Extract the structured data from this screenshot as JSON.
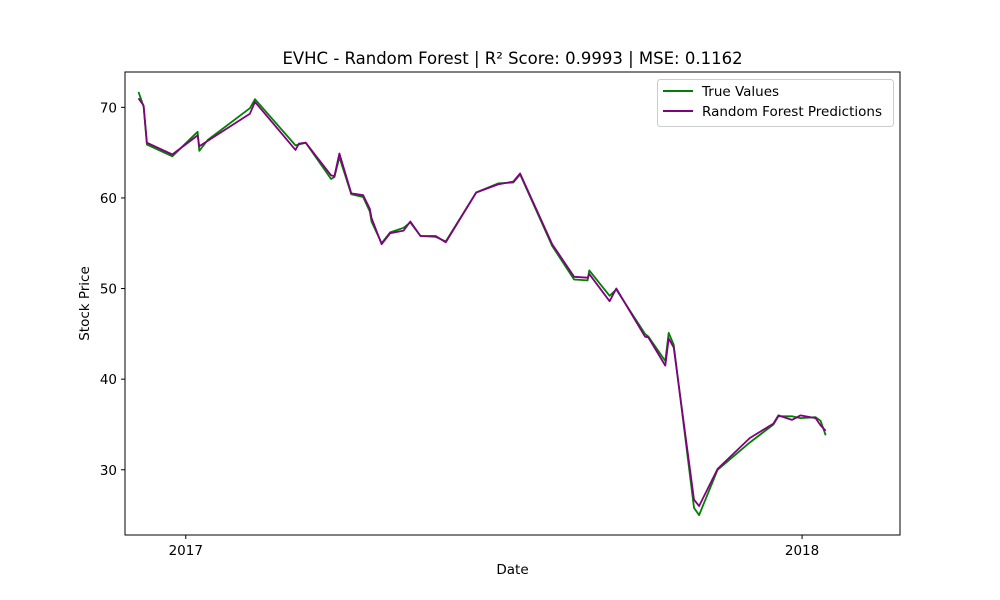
{
  "chart_data": {
    "type": "line",
    "title": "EVHC - Random Forest | R² Score: 0.9993 | MSE: 0.1162",
    "xlabel": "Date",
    "ylabel": "Stock Price",
    "xlim": [
      "2016-11-26",
      "2018-02-28"
    ],
    "ylim": [
      22.8,
      73.9
    ],
    "x_ticks": [
      {
        "date": "2017-01-01",
        "label": "2017"
      },
      {
        "date": "2018-01-01",
        "label": "2018"
      }
    ],
    "y_ticks": [
      30,
      40,
      50,
      60,
      70
    ],
    "legend_position": "top-right",
    "grid": false,
    "series": [
      {
        "name": "True Values",
        "color": "#008000",
        "points": [
          [
            "2016-12-04",
            71.7
          ],
          [
            "2016-12-07",
            70.1
          ],
          [
            "2016-12-09",
            65.9
          ],
          [
            "2016-12-24",
            64.6
          ],
          [
            "2017-01-08",
            67.3
          ],
          [
            "2017-01-09",
            65.2
          ],
          [
            "2017-01-14",
            66.4
          ],
          [
            "2017-02-08",
            69.9
          ],
          [
            "2017-02-11",
            70.9
          ],
          [
            "2017-03-07",
            65.8
          ],
          [
            "2017-03-09",
            65.9
          ],
          [
            "2017-03-13",
            66.1
          ],
          [
            "2017-03-28",
            62.1
          ],
          [
            "2017-03-30",
            62.3
          ],
          [
            "2017-04-02",
            64.5
          ],
          [
            "2017-04-09",
            60.4
          ],
          [
            "2017-04-16",
            60.1
          ],
          [
            "2017-04-20",
            58.5
          ],
          [
            "2017-04-21",
            57.4
          ],
          [
            "2017-04-27",
            55.0
          ],
          [
            "2017-05-02",
            56.2
          ],
          [
            "2017-05-10",
            56.7
          ],
          [
            "2017-05-14",
            57.3
          ],
          [
            "2017-05-20",
            55.8
          ],
          [
            "2017-05-29",
            55.7
          ],
          [
            "2017-06-04",
            55.2
          ],
          [
            "2017-06-22",
            60.6
          ],
          [
            "2017-07-05",
            61.6
          ],
          [
            "2017-07-14",
            61.7
          ],
          [
            "2017-07-18",
            62.6
          ],
          [
            "2017-08-06",
            54.7
          ],
          [
            "2017-08-19",
            51.0
          ],
          [
            "2017-08-27",
            50.9
          ],
          [
            "2017-08-28",
            52.0
          ],
          [
            "2017-09-09",
            49.2
          ],
          [
            "2017-09-13",
            49.9
          ],
          [
            "2017-09-30",
            45.0
          ],
          [
            "2017-10-02",
            44.7
          ],
          [
            "2017-10-12",
            42.0
          ],
          [
            "2017-10-14",
            45.1
          ],
          [
            "2017-10-17",
            43.8
          ],
          [
            "2017-10-29",
            25.8
          ],
          [
            "2017-11-01",
            25.0
          ],
          [
            "2017-11-12",
            30.0
          ],
          [
            "2017-12-01",
            33.0
          ],
          [
            "2017-12-15",
            35.0
          ],
          [
            "2017-12-18",
            35.9
          ],
          [
            "2017-12-26",
            35.9
          ],
          [
            "2017-12-31",
            35.7
          ],
          [
            "2018-01-09",
            35.8
          ],
          [
            "2018-01-12",
            35.4
          ],
          [
            "2018-01-15",
            33.8
          ]
        ]
      },
      {
        "name": "Random Forest Predictions",
        "color": "#800080",
        "points": [
          [
            "2016-12-04",
            71.0
          ],
          [
            "2016-12-07",
            70.2
          ],
          [
            "2016-12-09",
            66.1
          ],
          [
            "2016-12-24",
            64.8
          ],
          [
            "2017-01-08",
            66.9
          ],
          [
            "2017-01-09",
            65.7
          ],
          [
            "2017-01-14",
            66.3
          ],
          [
            "2017-02-08",
            69.3
          ],
          [
            "2017-02-11",
            70.6
          ],
          [
            "2017-03-07",
            65.3
          ],
          [
            "2017-03-09",
            66.0
          ],
          [
            "2017-03-13",
            66.1
          ],
          [
            "2017-03-28",
            62.5
          ],
          [
            "2017-03-30",
            62.4
          ],
          [
            "2017-04-02",
            64.9
          ],
          [
            "2017-04-09",
            60.5
          ],
          [
            "2017-04-16",
            60.3
          ],
          [
            "2017-04-20",
            58.8
          ],
          [
            "2017-04-21",
            57.8
          ],
          [
            "2017-04-27",
            54.9
          ],
          [
            "2017-05-02",
            56.1
          ],
          [
            "2017-05-10",
            56.4
          ],
          [
            "2017-05-14",
            57.4
          ],
          [
            "2017-05-20",
            55.8
          ],
          [
            "2017-05-29",
            55.8
          ],
          [
            "2017-06-04",
            55.1
          ],
          [
            "2017-06-22",
            60.6
          ],
          [
            "2017-07-05",
            61.5
          ],
          [
            "2017-07-14",
            61.8
          ],
          [
            "2017-07-18",
            62.7
          ],
          [
            "2017-08-06",
            54.9
          ],
          [
            "2017-08-19",
            51.3
          ],
          [
            "2017-08-27",
            51.2
          ],
          [
            "2017-08-28",
            51.6
          ],
          [
            "2017-09-09",
            48.6
          ],
          [
            "2017-09-13",
            50.0
          ],
          [
            "2017-09-30",
            44.7
          ],
          [
            "2017-10-02",
            44.6
          ],
          [
            "2017-10-12",
            41.5
          ],
          [
            "2017-10-14",
            44.5
          ],
          [
            "2017-10-17",
            43.5
          ],
          [
            "2017-10-29",
            26.7
          ],
          [
            "2017-11-01",
            26.0
          ],
          [
            "2017-11-12",
            30.1
          ],
          [
            "2017-12-01",
            33.5
          ],
          [
            "2017-12-15",
            35.1
          ],
          [
            "2017-12-18",
            36.0
          ],
          [
            "2017-12-26",
            35.5
          ],
          [
            "2017-12-31",
            36.0
          ],
          [
            "2018-01-09",
            35.7
          ],
          [
            "2018-01-12",
            34.9
          ],
          [
            "2018-01-15",
            34.3
          ]
        ]
      }
    ]
  }
}
